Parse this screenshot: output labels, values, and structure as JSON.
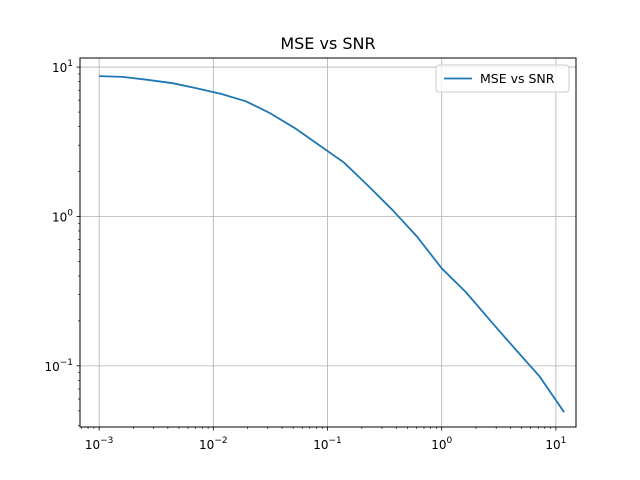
{
  "chart_data": {
    "type": "line",
    "title": "MSE vs SNR",
    "xlabel": "",
    "ylabel": "",
    "xscale": "log",
    "yscale": "log",
    "xlim": [
      0.00068,
      15
    ],
    "ylim": [
      0.039,
      11.5
    ],
    "grid": true,
    "legend_position": "top-right",
    "x_ticks": [
      {
        "base": "10",
        "exp": "−3"
      },
      {
        "base": "10",
        "exp": "−2"
      },
      {
        "base": "10",
        "exp": "−1"
      },
      {
        "base": "10",
        "exp": "0"
      },
      {
        "base": "10",
        "exp": "1"
      }
    ],
    "y_ticks": [
      {
        "base": "10",
        "exp": "−1"
      },
      {
        "base": "10",
        "exp": "0"
      },
      {
        "base": "10",
        "exp": "1"
      }
    ],
    "series": [
      {
        "name": "MSE vs SNR",
        "color": "#1f77b4",
        "x": [
          0.001,
          0.0016,
          0.0027,
          0.0044,
          0.0072,
          0.0118,
          0.0193,
          0.0316,
          0.0518,
          0.0848,
          0.139,
          0.228,
          0.373,
          0.611,
          1.0,
          1.64,
          2.68,
          4.39,
          7.2,
          11.8,
          19.3
        ],
        "y": [
          8.7,
          8.6,
          8.2,
          7.8,
          7.2,
          6.6,
          5.9,
          4.9,
          3.9,
          3.0,
          2.3,
          1.6,
          1.1,
          0.73,
          0.45,
          0.31,
          0.2,
          0.13,
          0.085,
          0.049,
          0.049
        ]
      }
    ]
  }
}
